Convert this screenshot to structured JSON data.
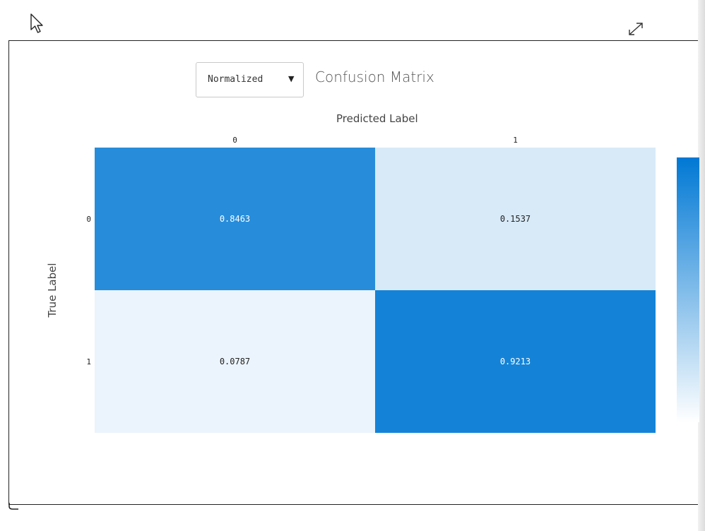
{
  "toolbar": {
    "normalization_select": {
      "value": "Normalized"
    }
  },
  "chart_data": {
    "type": "heatmap",
    "title": "Confusion Matrix",
    "xlabel": "Predicted Label",
    "ylabel": "True Label",
    "x_categories": [
      "0",
      "1"
    ],
    "y_categories": [
      "0",
      "1"
    ],
    "values": [
      [
        0.8463,
        0.1537
      ],
      [
        0.0787,
        0.9213
      ]
    ],
    "value_labels": [
      [
        "0.8463",
        "0.1537"
      ],
      [
        "0.0787",
        "0.9213"
      ]
    ],
    "colorscale": {
      "low": "#ffffff",
      "high": "#0078d4"
    },
    "zrange": [
      0,
      1
    ],
    "colorbar": true,
    "x_axis_position": "top"
  }
}
